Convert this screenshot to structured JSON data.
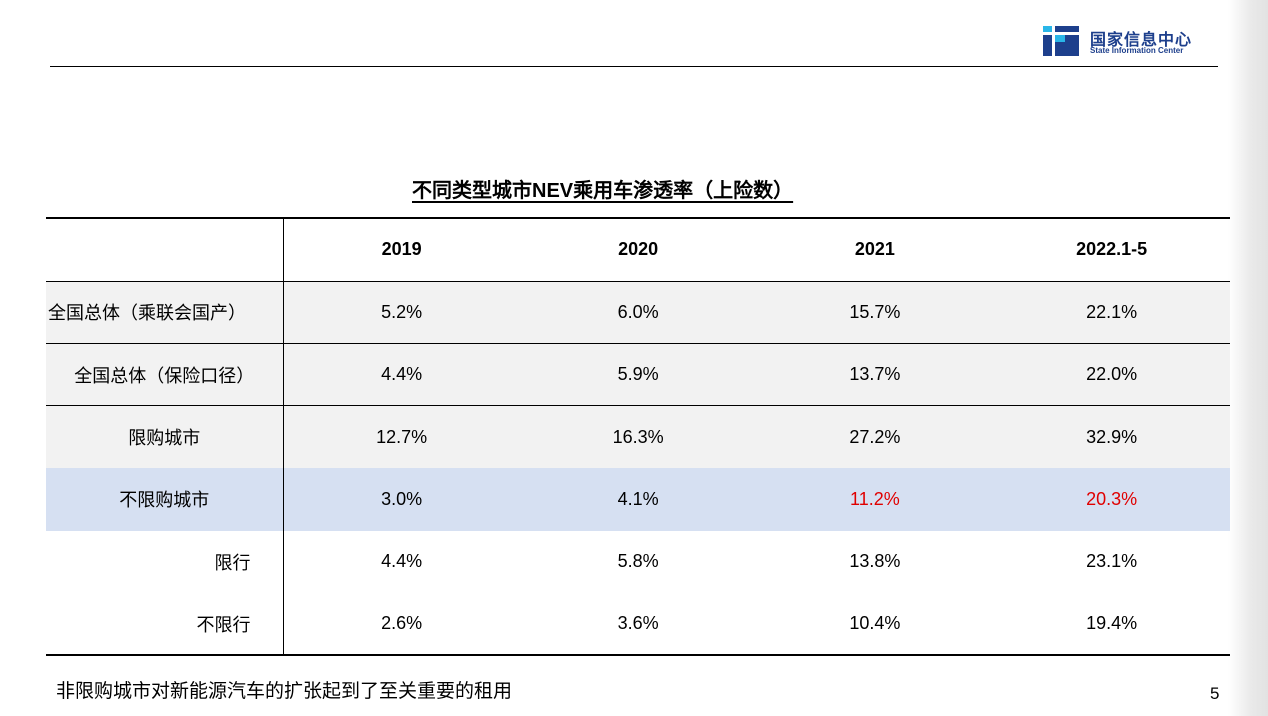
{
  "logo": {
    "name_cn": "国家信息中心",
    "name_en": "State Information Center",
    "colors": {
      "navy": "#1d3f8c",
      "cyan": "#29b6e8"
    }
  },
  "table": {
    "title": "不同类型城市NEV乘用车渗透率（上险数）",
    "columns": [
      "",
      "2019",
      "2020",
      "2021",
      "2022.1-5"
    ],
    "rows": [
      {
        "label": "全国总体（乘联会国产）",
        "values": [
          "5.2%",
          "6.0%",
          "15.7%",
          "22.1%"
        ]
      },
      {
        "label": "全国总体（保险口径）",
        "values": [
          "4.4%",
          "5.9%",
          "13.7%",
          "22.0%"
        ]
      },
      {
        "label": "限购城市",
        "values": [
          "12.7%",
          "16.3%",
          "27.2%",
          "32.9%"
        ]
      },
      {
        "label": "不限购城市",
        "values": [
          "3.0%",
          "4.1%",
          "11.2%",
          "20.3%"
        ]
      },
      {
        "label": "限行",
        "values": [
          "4.4%",
          "5.8%",
          "13.8%",
          "23.1%"
        ]
      },
      {
        "label": "不限行",
        "values": [
          "2.6%",
          "3.6%",
          "10.4%",
          "19.4%"
        ]
      }
    ],
    "colors": {
      "highlight_row": "#d6e0f2",
      "gray_row": "#f2f2f2",
      "highlight_text": "#e00000"
    }
  },
  "footnote": "非限购城市对新能源汽车的扩张起到了至关重要的租用",
  "page_number": "5"
}
